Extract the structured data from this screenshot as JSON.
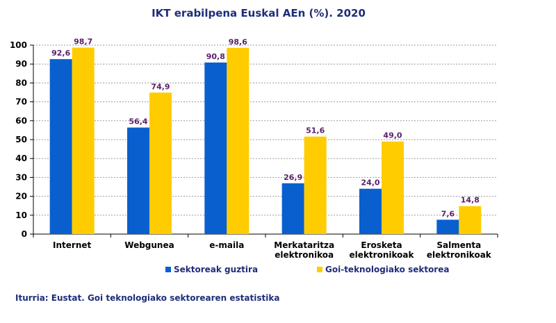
{
  "chart_data": {
    "type": "bar",
    "title": "IKT erabilpena Euskal AEn (%). 2020",
    "categories": [
      [
        "Internet"
      ],
      [
        "Webgunea"
      ],
      [
        "e-maila"
      ],
      [
        "Merkataritza",
        "elektronikoa"
      ],
      [
        "Erosketa",
        "elektronikoak"
      ],
      [
        "Salmenta",
        "elektronikoak"
      ]
    ],
    "series": [
      {
        "name": "Sektoreak guztira",
        "color": "#0a5fcf",
        "values": [
          92.6,
          56.4,
          90.8,
          26.9,
          24.0,
          7.6
        ],
        "labels": [
          "92,6",
          "56,4",
          "90,8",
          "26,9",
          "24,0",
          "7,6"
        ]
      },
      {
        "name": "Goi-teknologiako sektorea",
        "color": "#ffcc00",
        "values": [
          98.7,
          74.9,
          98.6,
          51.6,
          49.0,
          14.8
        ],
        "labels": [
          "98,7",
          "74,9",
          "98,6",
          "51,6",
          "49,0",
          "14,8"
        ]
      }
    ],
    "ylim": [
      0,
      100
    ],
    "yticks": [
      0,
      10,
      20,
      30,
      40,
      50,
      60,
      70,
      80,
      90,
      100
    ],
    "grid": true,
    "legend_position": "bottom"
  },
  "source": "Iturria: Eustat. Goi teknologiako sektorearen estatistika"
}
